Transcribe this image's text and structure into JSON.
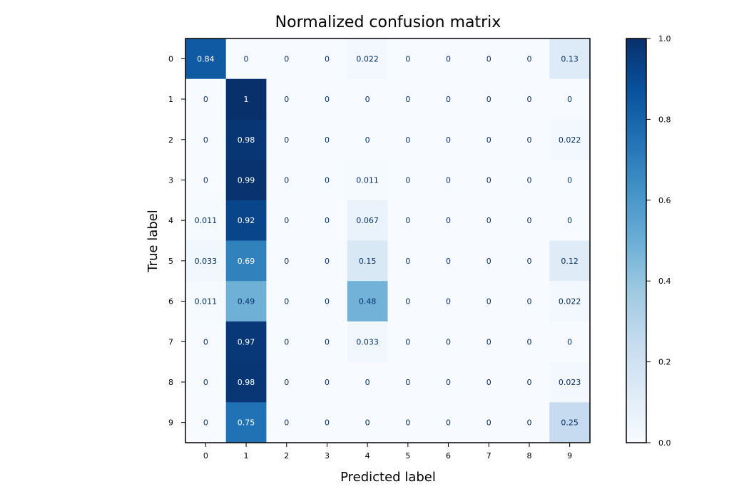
{
  "chart_data": {
    "type": "heatmap",
    "title": "Normalized confusion matrix",
    "xlabel": "Predicted label",
    "ylabel": "True label",
    "x_categories": [
      "0",
      "1",
      "2",
      "3",
      "4",
      "5",
      "6",
      "7",
      "8",
      "9"
    ],
    "y_categories": [
      "0",
      "1",
      "2",
      "3",
      "4",
      "5",
      "6",
      "7",
      "8",
      "9"
    ],
    "values": [
      [
        0.84,
        0,
        0,
        0,
        0.022,
        0,
        0,
        0,
        0,
        0.13
      ],
      [
        0,
        1,
        0,
        0,
        0,
        0,
        0,
        0,
        0,
        0
      ],
      [
        0,
        0.98,
        0,
        0,
        0,
        0,
        0,
        0,
        0,
        0.022
      ],
      [
        0,
        0.99,
        0,
        0,
        0.011,
        0,
        0,
        0,
        0,
        0
      ],
      [
        0.011,
        0.92,
        0,
        0,
        0.067,
        0,
        0,
        0,
        0,
        0
      ],
      [
        0.033,
        0.69,
        0,
        0,
        0.15,
        0,
        0,
        0,
        0,
        0.12
      ],
      [
        0.011,
        0.49,
        0,
        0,
        0.48,
        0,
        0,
        0,
        0,
        0.022
      ],
      [
        0,
        0.97,
        0,
        0,
        0.033,
        0,
        0,
        0,
        0,
        0
      ],
      [
        0,
        0.98,
        0,
        0,
        0,
        0,
        0,
        0,
        0,
        0.023
      ],
      [
        0,
        0.75,
        0,
        0,
        0,
        0,
        0,
        0,
        0,
        0.25
      ]
    ],
    "colormap": "Blues",
    "colorbar": {
      "range": [
        0,
        1
      ],
      "ticks": [
        0,
        0.2,
        0.4,
        0.6,
        0.8,
        1
      ],
      "tick_labels": [
        "0.0",
        "0.2",
        "0.4",
        "0.6",
        "0.8",
        "1.0"
      ]
    },
    "text_colors": {
      "light": "#ffffff",
      "dark": "#08306b"
    }
  }
}
